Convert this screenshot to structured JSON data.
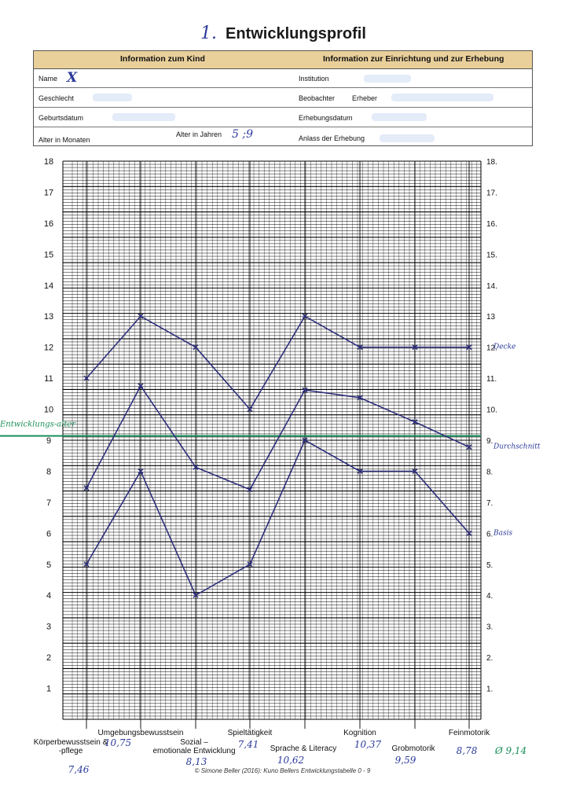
{
  "header": {
    "number": "1.",
    "title": "Entwicklungsprofil"
  },
  "info_table": {
    "left_header": "Information zum Kind",
    "right_header": "Information zur Einrichtung und zur Erhebung",
    "name_label": "Name",
    "name_value": "X",
    "sex_label": "Geschlecht",
    "dob_label": "Geburtsdatum",
    "age_months_label": "Alter in Monaten",
    "age_years_label": "Alter in Jahren",
    "age_years_value": "5 ;9",
    "institution_label": "Institution",
    "observer_label": "Beobachter",
    "observer_value": "Erheber",
    "survey_date_label": "Erhebungsdatum",
    "reason_label": "Anlass der Erhebung"
  },
  "chart_data": {
    "type": "line",
    "ylim": [
      0,
      18
    ],
    "left_ticks": [
      "1",
      "2",
      "3",
      "4",
      "5",
      "6",
      "7",
      "8",
      "9",
      "10",
      "11",
      "12",
      "13",
      "14",
      "15",
      "16",
      "17",
      "18"
    ],
    "right_ticks": [
      "1.",
      "2.",
      "3.",
      "4.",
      "5.",
      "6.",
      "7.",
      "8.",
      "9.",
      "10.",
      "11.",
      "12.",
      "13",
      "14.",
      "15.",
      "16.",
      "17.",
      "18."
    ],
    "categories": [
      {
        "label": "Körperbewusstsein & -pflege",
        "value_note": "7,46"
      },
      {
        "label": "Umgebungsbewusstsein",
        "value_note": "10,75"
      },
      {
        "label": "Sozial – emotionale Entwicklung",
        "value_note": "8,13"
      },
      {
        "label": "Spieltätigkeit",
        "value_note": "7,41"
      },
      {
        "label": "Sprache & Literacy",
        "value_note": "10,62"
      },
      {
        "label": "Kognition",
        "value_note": "10,37"
      },
      {
        "label": "Grobmotorik",
        "value_note": "9,59"
      },
      {
        "label": "Feinmotorik",
        "value_note": "8,78"
      }
    ],
    "series": [
      {
        "name": "Decke",
        "values": [
          11,
          13,
          12,
          10,
          13,
          12,
          12,
          12
        ]
      },
      {
        "name": "Durchschnitt",
        "values": [
          7.46,
          10.75,
          8.13,
          7.41,
          10.62,
          10.37,
          9.59,
          8.78
        ]
      },
      {
        "name": "Basis",
        "values": [
          5,
          8,
          4,
          5,
          9,
          8,
          8,
          6
        ]
      }
    ],
    "reference_line": {
      "name": "Entwicklungs-alter",
      "value": 9.14
    },
    "average_note": "Ø 9,14",
    "colors": {
      "series": "#2e2f7a",
      "reference": "#1a8f5a",
      "annotation": "#2b3a9a"
    }
  },
  "footer": "© Simone Beller (2016): Kuno Bellers Entwicklungstabelle 0 - 9"
}
